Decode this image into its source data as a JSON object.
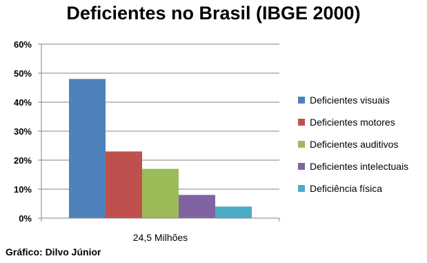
{
  "chart_data": {
    "type": "bar",
    "title": "Deficientes no Brasil (IBGE 2000)",
    "categories": [
      "24,5 Milhões"
    ],
    "series": [
      {
        "name": "Deficientes visuais",
        "values": [
          48
        ],
        "color": "#4F81BD"
      },
      {
        "name": "Deficientes motores",
        "values": [
          23
        ],
        "color": "#C0504D"
      },
      {
        "name": "Deficientes auditivos",
        "values": [
          17
        ],
        "color": "#9BBB59"
      },
      {
        "name": "Deficientes intelectuais",
        "values": [
          8
        ],
        "color": "#8064A2"
      },
      {
        "name": "Deficiência física",
        "values": [
          4
        ],
        "color": "#4BACC6"
      }
    ],
    "ylim": [
      0,
      60
    ],
    "yticks": [
      "0%",
      "10%",
      "20%",
      "30%",
      "40%",
      "50%",
      "60%"
    ],
    "ytick_values": [
      0,
      10,
      20,
      30,
      40,
      50,
      60
    ],
    "grid": true,
    "legend_position": "right"
  },
  "footer": {
    "credit": "Gráfico: Dilvo Júnior"
  }
}
